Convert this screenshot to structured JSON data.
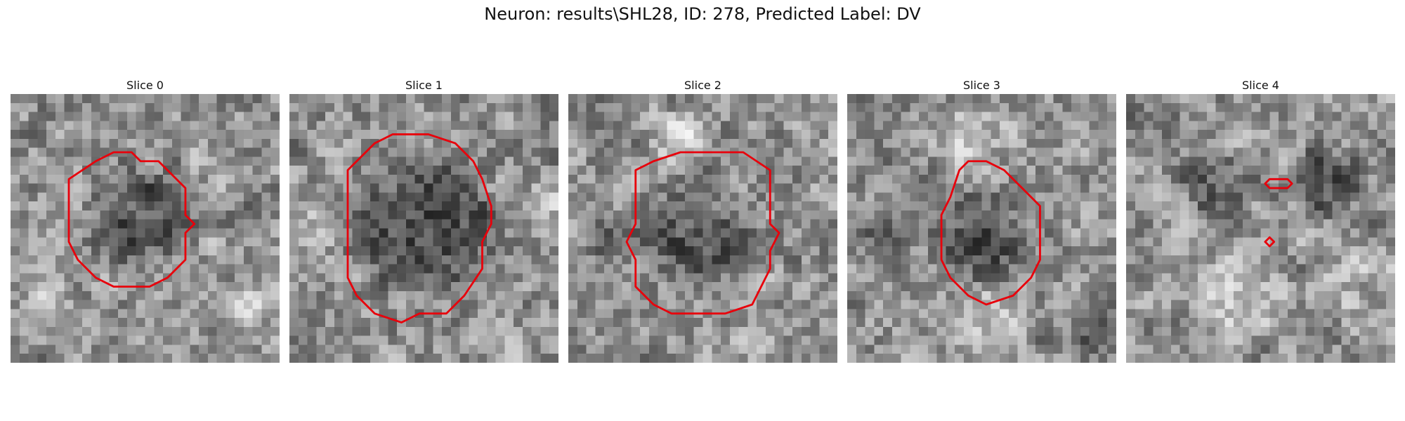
{
  "figure": {
    "title": "Neuron: results\\SHL28, ID: 278, Predicted Label: DV",
    "contour_color": "#e8000b"
  },
  "panels": [
    {
      "title": "Slice 0",
      "seed": 11,
      "blobs": [
        {
          "cx": 15,
          "cy": 14,
          "r": 7.5,
          "k": -60
        },
        {
          "cx": 4,
          "cy": 24,
          "r": 4,
          "k": 35
        },
        {
          "cx": 26,
          "cy": 24,
          "r": 5,
          "k": 40
        }
      ],
      "contours": [
        [
          [
            6.5,
            9.5
          ],
          [
            9.5,
            7.5
          ],
          [
            11.5,
            6.5
          ],
          [
            13.5,
            6.5
          ],
          [
            14.5,
            7.5
          ],
          [
            16.5,
            7.5
          ],
          [
            18.5,
            9.5
          ],
          [
            19.5,
            10.5
          ],
          [
            19.5,
            13.5
          ],
          [
            20.5,
            14.5
          ],
          [
            19.5,
            15.5
          ],
          [
            19.5,
            18.5
          ],
          [
            17.5,
            20.5
          ],
          [
            15.5,
            21.5
          ],
          [
            11.5,
            21.5
          ],
          [
            9.5,
            20.5
          ],
          [
            7.5,
            18.5
          ],
          [
            6.5,
            16.5
          ],
          [
            6.5,
            11.5
          ]
        ]
      ]
    },
    {
      "title": "Slice 1",
      "seed": 23,
      "blobs": [
        {
          "cx": 15,
          "cy": 15,
          "r": 9.5,
          "k": -75
        },
        {
          "cx": 2,
          "cy": 14,
          "r": 4,
          "k": 35
        },
        {
          "cx": 28,
          "cy": 12,
          "r": 4,
          "k": 30
        }
      ],
      "contours": [
        [
          [
            6.5,
            8.5
          ],
          [
            9.5,
            5.5
          ],
          [
            11.5,
            4.5
          ],
          [
            13.5,
            4.5
          ],
          [
            15.5,
            4.5
          ],
          [
            18.5,
            5.5
          ],
          [
            20.5,
            7.5
          ],
          [
            21.5,
            9.5
          ],
          [
            22.5,
            12.5
          ],
          [
            22.5,
            14.5
          ],
          [
            21.5,
            16.5
          ],
          [
            21.5,
            19.5
          ],
          [
            19.5,
            22.5
          ],
          [
            17.5,
            24.5
          ],
          [
            14.5,
            24.5
          ],
          [
            12.5,
            25.5
          ],
          [
            9.5,
            24.5
          ],
          [
            7.5,
            22.5
          ],
          [
            6.5,
            20.5
          ],
          [
            6.5,
            13.5
          ]
        ]
      ]
    },
    {
      "title": "Slice 2",
      "seed": 37,
      "blobs": [
        {
          "cx": 15,
          "cy": 16,
          "r": 8,
          "k": -55
        },
        {
          "cx": 5,
          "cy": 16,
          "r": 4,
          "k": -50
        },
        {
          "cx": 12,
          "cy": 5,
          "r": 4,
          "k": 45
        }
      ],
      "contours": [
        [
          [
            7.5,
            8.5
          ],
          [
            9.5,
            7.5
          ],
          [
            12.5,
            6.5
          ],
          [
            19.5,
            6.5
          ],
          [
            22.5,
            8.5
          ],
          [
            22.5,
            14.5
          ],
          [
            23.5,
            15.5
          ],
          [
            22.5,
            17.5
          ],
          [
            22.5,
            19.5
          ],
          [
            21.5,
            21.5
          ],
          [
            20.5,
            23.5
          ],
          [
            17.5,
            24.5
          ],
          [
            11.5,
            24.5
          ],
          [
            9.5,
            23.5
          ],
          [
            7.5,
            21.5
          ],
          [
            7.5,
            18.5
          ],
          [
            6.5,
            16.5
          ],
          [
            7.5,
            14.5
          ],
          [
            7.5,
            12.5
          ]
        ]
      ]
    },
    {
      "title": "Slice 3",
      "seed": 53,
      "blobs": [
        {
          "cx": 15,
          "cy": 16,
          "r": 6.5,
          "k": -60
        },
        {
          "cx": 4,
          "cy": 15,
          "r": 4,
          "k": -40
        },
        {
          "cx": 16,
          "cy": 25,
          "r": 5,
          "k": 45
        },
        {
          "cx": 14,
          "cy": 4,
          "r": 6,
          "k": 35
        },
        {
          "cx": 28,
          "cy": 27,
          "r": 3,
          "k": -55
        }
      ],
      "contours": [
        [
          [
            12.5,
            8.5
          ],
          [
            13.5,
            7.5
          ],
          [
            15.5,
            7.5
          ],
          [
            17.5,
            8.5
          ],
          [
            19.5,
            10.5
          ],
          [
            21.5,
            12.5
          ],
          [
            21.5,
            18.5
          ],
          [
            20.5,
            20.5
          ],
          [
            18.5,
            22.5
          ],
          [
            15.5,
            23.5
          ],
          [
            13.5,
            22.5
          ],
          [
            11.5,
            20.5
          ],
          [
            10.5,
            18.5
          ],
          [
            10.5,
            13.5
          ],
          [
            11.5,
            11.5
          ]
        ]
      ]
    },
    {
      "title": "Slice 4",
      "seed": 71,
      "blobs": [
        {
          "cx": 22,
          "cy": 10,
          "r": 5,
          "k": -60
        },
        {
          "cx": 10,
          "cy": 10,
          "r": 5,
          "k": -40
        },
        {
          "cx": 12,
          "cy": 23,
          "r": 7,
          "k": 45
        },
        {
          "cx": 26,
          "cy": 21,
          "r": 6,
          "k": 35
        }
      ],
      "contours": [
        [
          [
            15.5,
            10.0
          ],
          [
            16.0,
            9.5
          ],
          [
            18.0,
            9.5
          ],
          [
            18.5,
            10.0
          ],
          [
            18.0,
            10.5
          ],
          [
            16.0,
            10.5
          ]
        ],
        [
          [
            15.5,
            16.5
          ],
          [
            16.0,
            16.0
          ],
          [
            16.5,
            16.5
          ],
          [
            16.0,
            17.0
          ]
        ]
      ]
    }
  ]
}
